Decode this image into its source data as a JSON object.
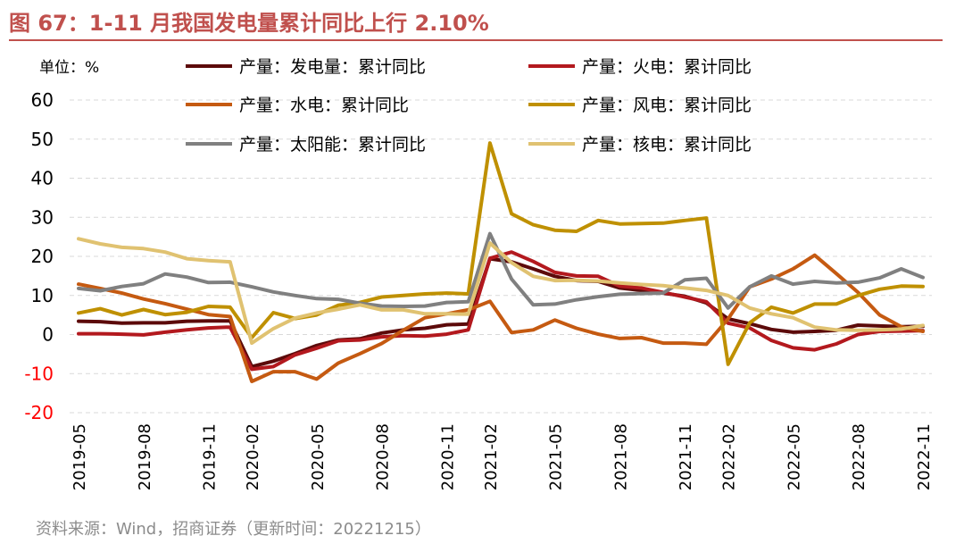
{
  "figure": {
    "title": "图 67：1-11 月我国发电量累计同比上行 2.10%",
    "source": "资料来源：Wind，招商证券（更新时间：20221215）"
  },
  "colors": {
    "accent": "#c0504d",
    "positive_tick": "#000000",
    "negative_tick": "#ff0000",
    "grid": "#d9d9d9"
  },
  "chart_data": {
    "type": "line",
    "unit_label": "单位：%",
    "title": "",
    "xlabel": "",
    "ylabel": "",
    "ylim": [
      -20,
      60
    ],
    "yticks": [
      60,
      50,
      40,
      30,
      20,
      10,
      0,
      -10,
      -20
    ],
    "grid": "horizontal dashed",
    "legend_position": "top",
    "x": [
      "2019-05",
      "2019-06",
      "2019-07",
      "2019-08",
      "2019-09",
      "2019-10",
      "2019-11",
      "2019-12",
      "2020-02",
      "2020-03",
      "2020-04",
      "2020-05",
      "2020-06",
      "2020-07",
      "2020-08",
      "2020-09",
      "2020-10",
      "2020-11",
      "2020-12",
      "2021-02",
      "2021-03",
      "2021-04",
      "2021-05",
      "2021-06",
      "2021-07",
      "2021-08",
      "2021-09",
      "2021-10",
      "2021-11",
      "2021-12",
      "2022-02",
      "2022-03",
      "2022-04",
      "2022-05",
      "2022-06",
      "2022-07",
      "2022-08",
      "2022-09",
      "2022-10",
      "2022-11"
    ],
    "xtick_labels": [
      "2019-05",
      "2019-08",
      "2019-11",
      "2020-02",
      "2020-05",
      "2020-08",
      "2020-11",
      "2021-02",
      "2021-05",
      "2021-08",
      "2021-11",
      "2022-02",
      "2022-05",
      "2022-08",
      "2022-11"
    ],
    "series": [
      {
        "name": "产量：发电量：累计同比",
        "color": "#5c0a0a",
        "values": [
          3.4,
          3.3,
          2.9,
          3.0,
          3.0,
          3.4,
          3.5,
          3.5,
          -8.2,
          -6.8,
          -4.9,
          -2.8,
          -1.4,
          -1.1,
          0.4,
          1.2,
          1.6,
          2.5,
          2.7,
          19.4,
          18.6,
          16.8,
          14.9,
          13.8,
          13.6,
          11.9,
          11.3,
          10.6,
          9.8,
          8.1,
          4.0,
          2.8,
          1.3,
          0.6,
          0.8,
          1.1,
          2.4,
          2.2,
          2.0,
          2.1
        ]
      },
      {
        "name": "产量：火电：累计同比",
        "color": "#b3191e",
        "values": [
          0.2,
          0.2,
          0.1,
          -0.1,
          0.6,
          1.2,
          1.7,
          1.9,
          -8.9,
          -8.2,
          -5.2,
          -3.5,
          -1.6,
          -1.4,
          -0.6,
          -0.3,
          -0.4,
          0.1,
          1.2,
          19.5,
          21.1,
          18.7,
          15.9,
          15.0,
          14.9,
          12.4,
          11.9,
          10.8,
          9.6,
          8.4,
          2.9,
          1.7,
          -1.5,
          -3.4,
          -3.9,
          -2.4,
          0.0,
          0.8,
          0.9,
          1.0
        ]
      },
      {
        "name": "产量：水电：累计同比",
        "color": "#c55a11",
        "values": [
          12.9,
          11.8,
          10.6,
          9.1,
          7.9,
          6.5,
          5.1,
          4.6,
          -12.0,
          -9.5,
          -9.5,
          -11.4,
          -7.3,
          -4.9,
          -2.3,
          1.1,
          4.3,
          5.3,
          6.3,
          8.5,
          0.5,
          1.2,
          3.7,
          1.6,
          0.1,
          -1.0,
          -0.8,
          -2.2,
          -2.2,
          -2.5,
          4.0,
          12.2,
          14.2,
          16.8,
          20.3,
          15.6,
          10.8,
          5.0,
          2.0,
          0.8
        ]
      },
      {
        "name": "产量：风电：累计同比",
        "color": "#bf9000",
        "values": [
          5.5,
          6.6,
          5.0,
          6.4,
          5.1,
          5.7,
          7.2,
          7.0,
          -0.8,
          5.6,
          4.1,
          5.0,
          7.5,
          8.2,
          9.6,
          10.0,
          10.4,
          10.6,
          10.4,
          49.0,
          30.9,
          28.1,
          26.7,
          26.4,
          29.2,
          28.3,
          28.4,
          28.5,
          29.2,
          29.8,
          -7.6,
          3.0,
          7.0,
          5.5,
          7.8,
          7.8,
          10.0,
          11.6,
          12.4,
          12.3
        ]
      },
      {
        "name": "产量：太阳能：累计同比",
        "color": "#808080",
        "values": [
          11.8,
          11.2,
          12.3,
          13.0,
          15.5,
          14.7,
          13.3,
          13.4,
          12.2,
          10.9,
          10.0,
          9.2,
          9.0,
          8.0,
          7.3,
          7.2,
          7.3,
          8.2,
          8.4,
          25.8,
          14.2,
          7.6,
          7.8,
          8.9,
          9.7,
          10.3,
          10.5,
          10.6,
          14.0,
          14.4,
          6.8,
          12.2,
          15.0,
          12.9,
          13.6,
          13.2,
          13.4,
          14.5,
          16.8,
          14.6
        ]
      },
      {
        "name": "产量：核电：累计同比",
        "color": "#e0c271",
        "values": [
          24.5,
          23.2,
          22.3,
          22.0,
          21.1,
          19.4,
          18.9,
          18.6,
          -2.2,
          1.5,
          4.2,
          5.5,
          6.5,
          7.6,
          6.3,
          6.3,
          5.3,
          5.3,
          5.2,
          23.4,
          18.4,
          14.9,
          13.8,
          13.9,
          13.7,
          13.2,
          12.8,
          12.5,
          11.9,
          11.3,
          10.0,
          6.8,
          5.3,
          4.3,
          1.9,
          1.2,
          1.1,
          1.2,
          1.4,
          2.3
        ]
      }
    ]
  }
}
